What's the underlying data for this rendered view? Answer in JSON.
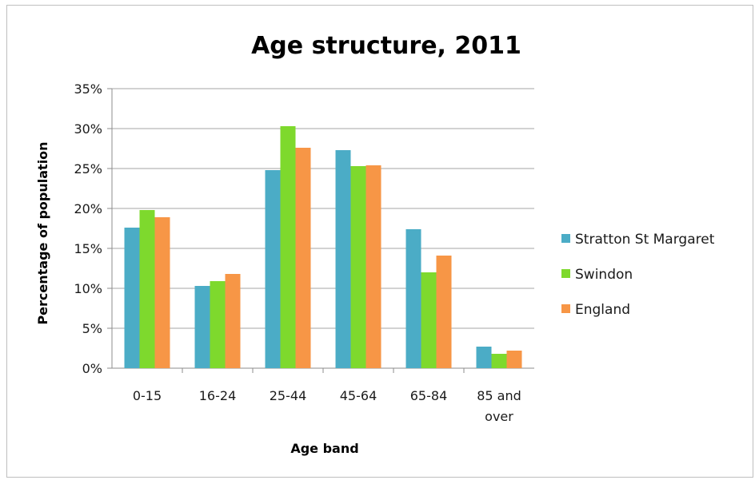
{
  "chart_data": {
    "type": "bar",
    "title": "Age structure, 2011",
    "xlabel": "Age band",
    "ylabel": "Percentage of population",
    "categories": [
      [
        "0-15"
      ],
      [
        "16-24"
      ],
      [
        "25-44"
      ],
      [
        "45-64"
      ],
      [
        "65-84"
      ],
      [
        "85 and",
        "over"
      ]
    ],
    "y_ticks": [
      "0%",
      "5%",
      "10%",
      "15%",
      "20%",
      "25%",
      "30%",
      "35%"
    ],
    "ylim": [
      0,
      35
    ],
    "grid": true,
    "legend_position": "right",
    "series": [
      {
        "name": "Stratton St Margaret",
        "color": "#4bacc6",
        "values": [
          17.6,
          10.3,
          24.8,
          27.3,
          17.4,
          2.7
        ]
      },
      {
        "name": "Swindon",
        "color": "#7ed92d",
        "values": [
          19.8,
          10.9,
          30.3,
          25.3,
          12.0,
          1.8
        ]
      },
      {
        "name": "England",
        "color": "#f79646",
        "values": [
          18.9,
          11.8,
          27.6,
          25.4,
          14.1,
          2.2
        ]
      }
    ]
  }
}
